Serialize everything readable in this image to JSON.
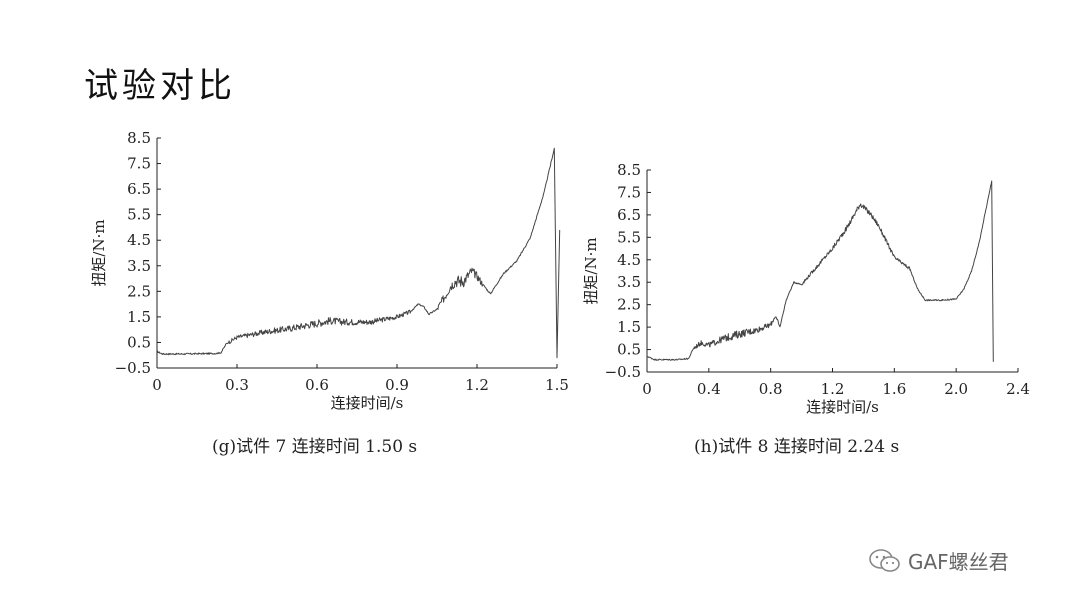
{
  "slide": {
    "title": "试验对比"
  },
  "watermark": {
    "text": "GAF螺丝君",
    "icon": "wechat-icon"
  },
  "colors": {
    "line": "#444444",
    "axis": "#222222"
  },
  "chart_data": [
    {
      "id": "g",
      "type": "line",
      "caption": "(g)试件 7 连接时间 1.50 s",
      "xlabel": "连接时间/s",
      "ylabel": "扭矩/N·m",
      "xlim": [
        0,
        1.5
      ],
      "ylim": [
        -0.5,
        8.5
      ],
      "xticks": [
        "0",
        "0.3",
        "0.6",
        "0.9",
        "1.2",
        "1.5"
      ],
      "yticks": [
        "−0.5",
        "0.5",
        "1.5",
        "2.5",
        "3.5",
        "4.5",
        "5.5",
        "6.5",
        "7.5",
        "8.5"
      ],
      "series": [
        {
          "x": [
            0,
            0.02,
            0.1,
            0.22,
            0.24,
            0.26,
            0.3,
            0.35,
            0.4,
            0.5,
            0.55,
            0.6,
            0.65,
            0.7,
            0.8,
            0.9,
            0.95,
            0.98,
            1.0,
            1.02,
            1.05,
            1.08,
            1.1,
            1.12,
            1.15,
            1.18,
            1.2,
            1.22,
            1.25,
            1.3,
            1.35,
            1.4,
            1.45,
            1.47,
            1.49
          ],
          "y": [
            0.15,
            0.05,
            0.05,
            0.07,
            0.1,
            0.45,
            0.7,
            0.8,
            0.9,
            1.05,
            1.15,
            1.25,
            1.35,
            1.3,
            1.3,
            1.5,
            1.7,
            2.0,
            1.9,
            1.6,
            1.8,
            2.3,
            2.7,
            2.9,
            2.9,
            3.3,
            3.1,
            2.8,
            2.4,
            3.2,
            3.7,
            4.6,
            6.3,
            7.2,
            8.1
          ],
          "noisy": [
            [
              0.27,
              0.95,
              0.15
            ],
            [
              1.05,
              1.22,
              0.25
            ]
          ],
          "tail": [
            [
              1.49,
              8.1
            ],
            [
              1.5,
              -0.1
            ],
            [
              1.51,
              4.9
            ]
          ]
        }
      ]
    },
    {
      "id": "h",
      "type": "line",
      "caption": "(h)试件 8 连接时间 2.24 s",
      "xlabel": "连接时间/s",
      "ylabel": "扭矩/N·m",
      "xlim": [
        0,
        2.4
      ],
      "ylim": [
        -0.5,
        8.5
      ],
      "xticks": [
        "0",
        "0.4",
        "0.8",
        "1.2",
        "1.6",
        "2.0",
        "2.4"
      ],
      "yticks": [
        "−0.5",
        "0.5",
        "1.5",
        "2.5",
        "3.5",
        "4.5",
        "5.5",
        "6.5",
        "7.5",
        "8.5"
      ],
      "series": [
        {
          "x": [
            0,
            0.05,
            0.2,
            0.27,
            0.3,
            0.35,
            0.4,
            0.5,
            0.6,
            0.7,
            0.8,
            0.83,
            0.86,
            0.9,
            0.95,
            1.0,
            1.1,
            1.2,
            1.3,
            1.38,
            1.45,
            1.5,
            1.6,
            1.7,
            1.75,
            1.8,
            1.9,
            2.0,
            2.05,
            2.1,
            2.15,
            2.2,
            2.23
          ],
          "y": [
            0.2,
            0.05,
            0.05,
            0.1,
            0.55,
            0.8,
            0.7,
            1.0,
            1.2,
            1.35,
            1.6,
            2.0,
            1.5,
            2.7,
            3.5,
            3.4,
            4.2,
            5.0,
            6.0,
            7.0,
            6.5,
            6.0,
            4.6,
            4.1,
            3.2,
            2.7,
            2.7,
            2.75,
            3.2,
            4.0,
            5.3,
            7.0,
            8.0
          ],
          "noisy": [
            [
              0.3,
              0.85,
              0.18
            ],
            [
              1.0,
              1.72,
              0.12
            ]
          ],
          "tail": [
            [
              2.23,
              8.0
            ],
            [
              2.24,
              -0.05
            ]
          ]
        }
      ]
    }
  ]
}
